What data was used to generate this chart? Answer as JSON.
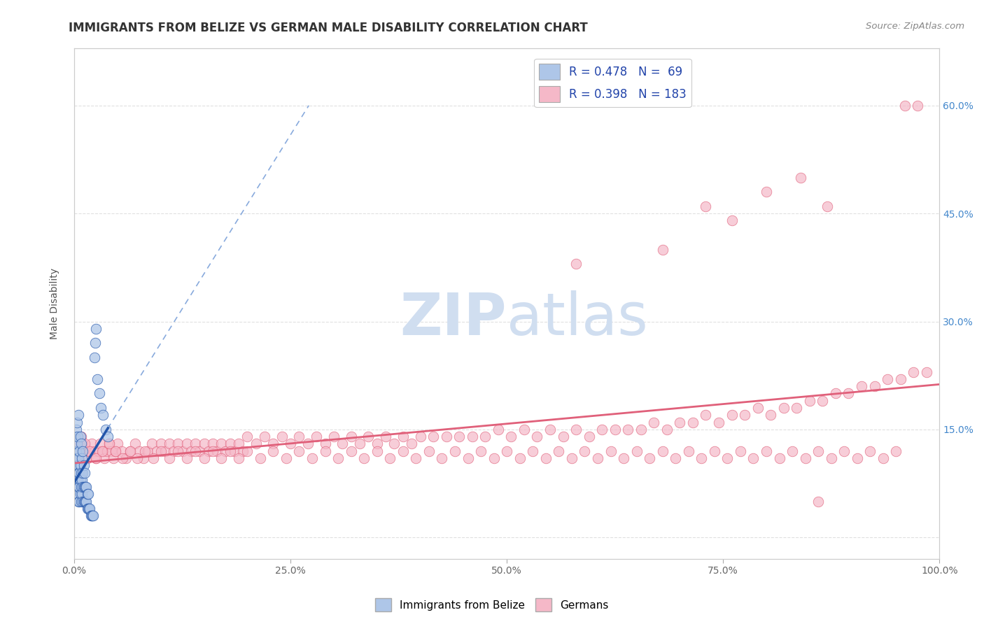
{
  "title": "IMMIGRANTS FROM BELIZE VS GERMAN MALE DISABILITY CORRELATION CHART",
  "source_text": "Source: ZipAtlas.com",
  "ylabel": "Male Disability",
  "xlim": [
    0,
    1.0
  ],
  "ylim": [
    -0.03,
    0.68
  ],
  "yticks": [
    0.0,
    0.15,
    0.3,
    0.45,
    0.6
  ],
  "ytick_labels": [
    "",
    "15.0%",
    "30.0%",
    "45.0%",
    "60.0%"
  ],
  "xticks": [
    0.0,
    0.25,
    0.5,
    0.75,
    1.0
  ],
  "xtick_labels": [
    "0.0%",
    "25.0%",
    "50.0%",
    "75.0%",
    "100.0%"
  ],
  "legend_blue_r": "R = 0.478",
  "legend_blue_n": "N =  69",
  "legend_pink_r": "R = 0.398",
  "legend_pink_n": "N = 183",
  "blue_color": "#AEC6E8",
  "blue_line_color": "#2255AA",
  "blue_dash_color": "#88AADD",
  "pink_color": "#F5B8C8",
  "pink_line_color": "#E0607A",
  "watermark_zip": "ZIP",
  "watermark_atlas": "atlas",
  "watermark_color": "#D0DEF0",
  "background_color": "#FFFFFF",
  "grid_color": "#CCCCCC",
  "blue_scatter_x": [
    0.001,
    0.001,
    0.001,
    0.002,
    0.002,
    0.002,
    0.002,
    0.003,
    0.003,
    0.003,
    0.003,
    0.003,
    0.004,
    0.004,
    0.004,
    0.004,
    0.005,
    0.005,
    0.005,
    0.005,
    0.005,
    0.006,
    0.006,
    0.006,
    0.006,
    0.007,
    0.007,
    0.007,
    0.007,
    0.008,
    0.008,
    0.008,
    0.008,
    0.009,
    0.009,
    0.009,
    0.01,
    0.01,
    0.01,
    0.01,
    0.011,
    0.011,
    0.011,
    0.012,
    0.012,
    0.012,
    0.013,
    0.013,
    0.014,
    0.014,
    0.015,
    0.015,
    0.016,
    0.016,
    0.017,
    0.018,
    0.019,
    0.02,
    0.021,
    0.022,
    0.023,
    0.024,
    0.025,
    0.027,
    0.029,
    0.031,
    0.033,
    0.036,
    0.039
  ],
  "blue_scatter_y": [
    0.1,
    0.12,
    0.14,
    0.08,
    0.1,
    0.12,
    0.15,
    0.07,
    0.09,
    0.11,
    0.13,
    0.16,
    0.06,
    0.08,
    0.1,
    0.14,
    0.05,
    0.07,
    0.09,
    0.11,
    0.17,
    0.05,
    0.07,
    0.09,
    0.12,
    0.06,
    0.08,
    0.1,
    0.14,
    0.05,
    0.07,
    0.09,
    0.13,
    0.06,
    0.08,
    0.11,
    0.05,
    0.07,
    0.09,
    0.12,
    0.05,
    0.07,
    0.1,
    0.05,
    0.07,
    0.09,
    0.05,
    0.07,
    0.05,
    0.07,
    0.04,
    0.06,
    0.04,
    0.06,
    0.04,
    0.04,
    0.03,
    0.03,
    0.03,
    0.03,
    0.25,
    0.27,
    0.29,
    0.22,
    0.2,
    0.18,
    0.17,
    0.15,
    0.14
  ],
  "pink_scatter_x": [
    0.002,
    0.004,
    0.006,
    0.008,
    0.01,
    0.012,
    0.015,
    0.018,
    0.02,
    0.023,
    0.025,
    0.028,
    0.03,
    0.033,
    0.035,
    0.038,
    0.04,
    0.043,
    0.045,
    0.048,
    0.05,
    0.055,
    0.06,
    0.065,
    0.07,
    0.075,
    0.08,
    0.085,
    0.09,
    0.095,
    0.1,
    0.105,
    0.11,
    0.115,
    0.12,
    0.125,
    0.13,
    0.135,
    0.14,
    0.145,
    0.15,
    0.155,
    0.16,
    0.165,
    0.17,
    0.175,
    0.18,
    0.185,
    0.19,
    0.195,
    0.2,
    0.21,
    0.22,
    0.23,
    0.24,
    0.25,
    0.26,
    0.27,
    0.28,
    0.29,
    0.3,
    0.31,
    0.32,
    0.33,
    0.34,
    0.35,
    0.36,
    0.37,
    0.38,
    0.39,
    0.4,
    0.415,
    0.43,
    0.445,
    0.46,
    0.475,
    0.49,
    0.505,
    0.52,
    0.535,
    0.55,
    0.565,
    0.58,
    0.595,
    0.61,
    0.625,
    0.64,
    0.655,
    0.67,
    0.685,
    0.7,
    0.715,
    0.73,
    0.745,
    0.76,
    0.775,
    0.79,
    0.805,
    0.82,
    0.835,
    0.85,
    0.865,
    0.88,
    0.895,
    0.91,
    0.925,
    0.94,
    0.955,
    0.97,
    0.985,
    0.008,
    0.012,
    0.018,
    0.025,
    0.032,
    0.04,
    0.048,
    0.056,
    0.065,
    0.073,
    0.082,
    0.091,
    0.1,
    0.11,
    0.12,
    0.13,
    0.14,
    0.15,
    0.16,
    0.17,
    0.18,
    0.19,
    0.2,
    0.215,
    0.23,
    0.245,
    0.26,
    0.275,
    0.29,
    0.305,
    0.32,
    0.335,
    0.35,
    0.365,
    0.38,
    0.395,
    0.41,
    0.425,
    0.44,
    0.455,
    0.47,
    0.485,
    0.5,
    0.515,
    0.53,
    0.545,
    0.56,
    0.575,
    0.59,
    0.605,
    0.62,
    0.635,
    0.65,
    0.665,
    0.68,
    0.695,
    0.71,
    0.725,
    0.74,
    0.755,
    0.77,
    0.785,
    0.8,
    0.815,
    0.83,
    0.845,
    0.86,
    0.875,
    0.89,
    0.905,
    0.92,
    0.935,
    0.95
  ],
  "pink_scatter_y": [
    0.12,
    0.13,
    0.11,
    0.12,
    0.13,
    0.12,
    0.11,
    0.12,
    0.13,
    0.12,
    0.11,
    0.12,
    0.13,
    0.12,
    0.11,
    0.12,
    0.13,
    0.12,
    0.11,
    0.12,
    0.13,
    0.12,
    0.11,
    0.12,
    0.13,
    0.12,
    0.11,
    0.12,
    0.13,
    0.12,
    0.13,
    0.12,
    0.13,
    0.12,
    0.13,
    0.12,
    0.13,
    0.12,
    0.13,
    0.12,
    0.13,
    0.12,
    0.13,
    0.12,
    0.13,
    0.12,
    0.13,
    0.12,
    0.13,
    0.12,
    0.14,
    0.13,
    0.14,
    0.13,
    0.14,
    0.13,
    0.14,
    0.13,
    0.14,
    0.13,
    0.14,
    0.13,
    0.14,
    0.13,
    0.14,
    0.13,
    0.14,
    0.13,
    0.14,
    0.13,
    0.14,
    0.14,
    0.14,
    0.14,
    0.14,
    0.14,
    0.15,
    0.14,
    0.15,
    0.14,
    0.15,
    0.14,
    0.15,
    0.14,
    0.15,
    0.15,
    0.15,
    0.15,
    0.16,
    0.15,
    0.16,
    0.16,
    0.17,
    0.16,
    0.17,
    0.17,
    0.18,
    0.17,
    0.18,
    0.18,
    0.19,
    0.19,
    0.2,
    0.2,
    0.21,
    0.21,
    0.22,
    0.22,
    0.23,
    0.23,
    0.14,
    0.13,
    0.12,
    0.11,
    0.12,
    0.13,
    0.12,
    0.11,
    0.12,
    0.11,
    0.12,
    0.11,
    0.12,
    0.11,
    0.12,
    0.11,
    0.12,
    0.11,
    0.12,
    0.11,
    0.12,
    0.11,
    0.12,
    0.11,
    0.12,
    0.11,
    0.12,
    0.11,
    0.12,
    0.11,
    0.12,
    0.11,
    0.12,
    0.11,
    0.12,
    0.11,
    0.12,
    0.11,
    0.12,
    0.11,
    0.12,
    0.11,
    0.12,
    0.11,
    0.12,
    0.11,
    0.12,
    0.11,
    0.12,
    0.11,
    0.12,
    0.11,
    0.12,
    0.11,
    0.12,
    0.11,
    0.12,
    0.11,
    0.12,
    0.11,
    0.12,
    0.11,
    0.12,
    0.11,
    0.12,
    0.11,
    0.12,
    0.11,
    0.12,
    0.11,
    0.12,
    0.11,
    0.12
  ],
  "pink_outliers_x": [
    0.73,
    0.8,
    0.84,
    0.87,
    0.96,
    0.975,
    0.58,
    0.68,
    0.76,
    0.86
  ],
  "pink_outliers_y": [
    0.46,
    0.48,
    0.5,
    0.46,
    0.6,
    0.6,
    0.38,
    0.4,
    0.44,
    0.05
  ],
  "title_fontsize": 12,
  "axis_label_fontsize": 10,
  "tick_fontsize": 10,
  "legend_fontsize": 12
}
